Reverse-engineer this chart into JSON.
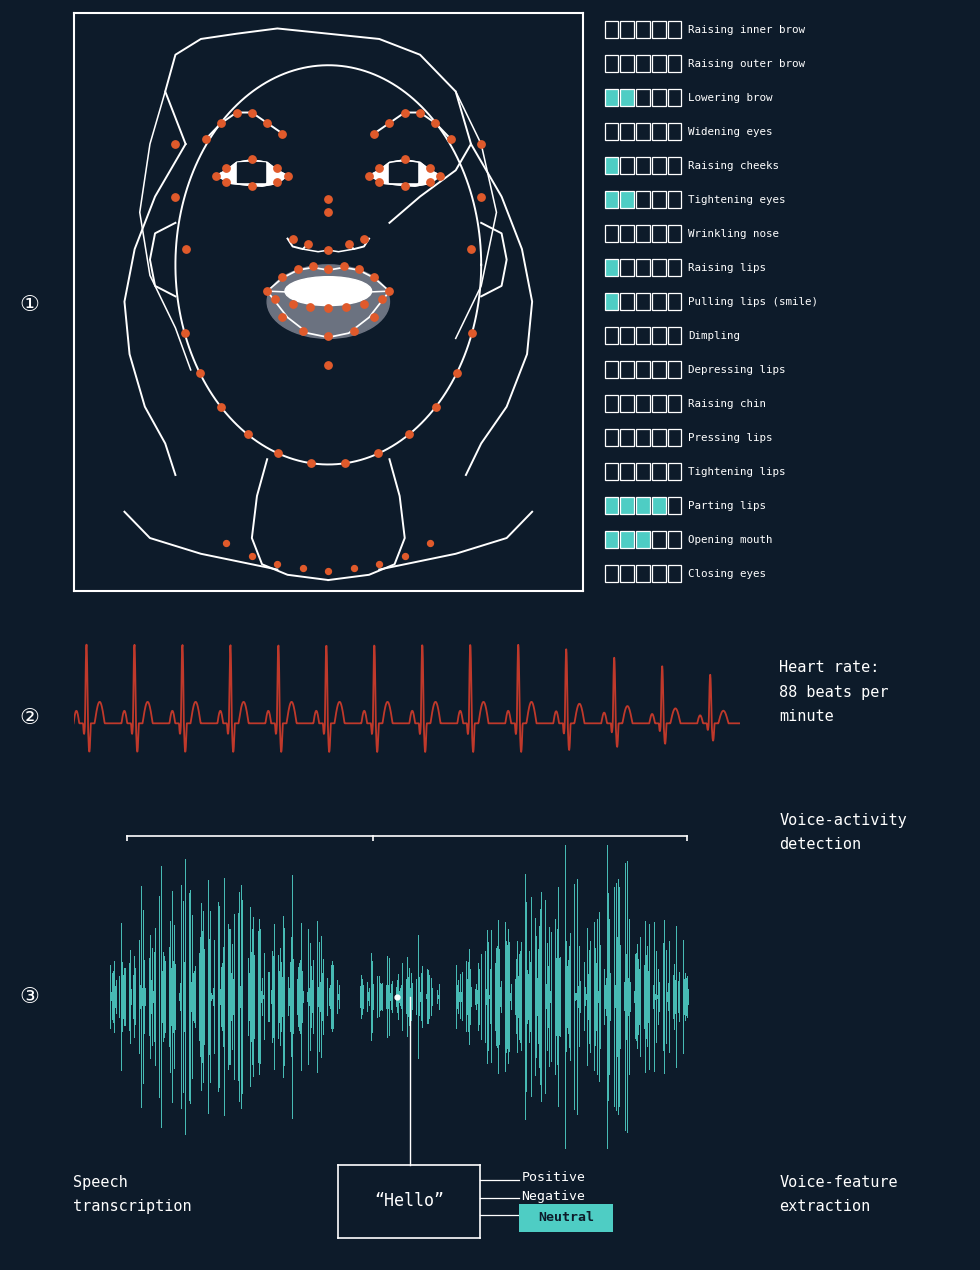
{
  "bg_color": "#0d1b2a",
  "line_color": "#ffffff",
  "dot_color": "#e05a2b",
  "teal_color": "#4ecdc4",
  "heart_color": "#c0392b",
  "text_color": "#ffffff",
  "lip_color": "#6b7280",
  "bar_labels": [
    "Raising inner brow",
    "Raising outer brow",
    "Lowering brow",
    "Widening eyes",
    "Raising cheeks",
    "Tightening eyes",
    "Wrinkling nose",
    "Raising lips",
    "Pulling lips (smile)",
    "Dimpling",
    "Depressing lips",
    "Raising chin",
    "Pressing lips",
    "Tightening lips",
    "Parting lips",
    "Opening mouth",
    "Closing eyes"
  ],
  "bar_filled": [
    0,
    0,
    2,
    0,
    1,
    2,
    0,
    1,
    1,
    0,
    0,
    0,
    0,
    0,
    4,
    3,
    0
  ],
  "num_cells": 5,
  "heart_rate_text": "Heart rate:\n88 beats per\nminute",
  "voice_activity_text": "Voice-activity\ndetection",
  "speech_transcription_text": "Speech\ntranscription",
  "hello_text": "“Hello”",
  "positive_text": "Positive",
  "negative_text": "Negative",
  "neutral_text": "Neutral",
  "voice_feature_text": "Voice-feature\nextraction"
}
